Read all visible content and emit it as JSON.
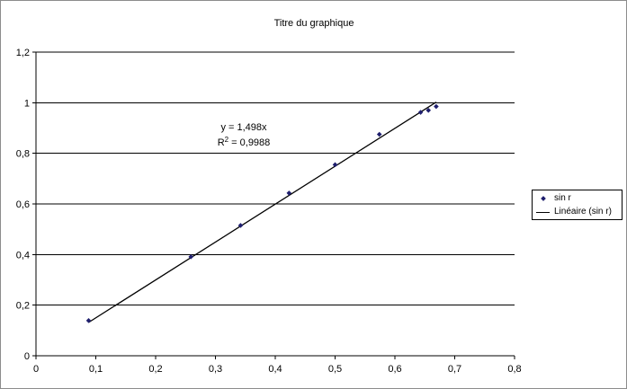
{
  "chart_data": {
    "type": "scatter",
    "title": "Titre du graphique",
    "xlabel": "",
    "ylabel": "",
    "xlim": [
      0,
      0.8
    ],
    "ylim": [
      0,
      1.2
    ],
    "x_ticks": [
      "0",
      "0,1",
      "0,2",
      "0,3",
      "0,4",
      "0,5",
      "0,6",
      "0,7",
      "0,8"
    ],
    "y_ticks": [
      "0",
      "0,2",
      "0,4",
      "0,6",
      "0,8",
      "1",
      "1,2"
    ],
    "grid": "horizontal",
    "legend_position": "right",
    "series": [
      {
        "name": "sin r",
        "marker": "diamond",
        "color": "#1f1f6e",
        "points": [
          {
            "x": 0.088,
            "y": 0.139
          },
          {
            "x": 0.259,
            "y": 0.391
          },
          {
            "x": 0.342,
            "y": 0.515
          },
          {
            "x": 0.423,
            "y": 0.643
          },
          {
            "x": 0.5,
            "y": 0.755
          },
          {
            "x": 0.574,
            "y": 0.875
          },
          {
            "x": 0.643,
            "y": 0.962
          },
          {
            "x": 0.656,
            "y": 0.97
          },
          {
            "x": 0.669,
            "y": 0.985
          }
        ]
      }
    ],
    "trendline": {
      "name": "Linéaire (sin r)",
      "type": "linear",
      "slope": 1.498,
      "intercept": 0,
      "x_range": [
        0.088,
        0.669
      ],
      "color": "#000000",
      "equation": "y = 1,498x",
      "r2_prefix": "R",
      "r2_exponent": "2",
      "r2_value": " = 0,9988"
    }
  }
}
